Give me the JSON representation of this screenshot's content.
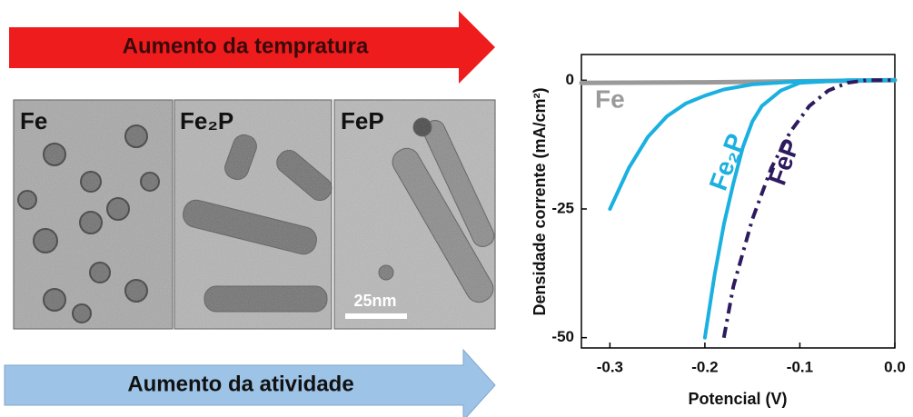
{
  "arrows": {
    "top": "Aumento da tempratura",
    "bottom": "Aumento da atividade"
  },
  "panels": [
    {
      "label": "Fe"
    },
    {
      "label": "Fe₂P"
    },
    {
      "label": "FeP"
    }
  ],
  "scale_bar": "25nm",
  "chart_data": {
    "type": "line",
    "x_label": "Potencial (V)",
    "y_label": "Densidade corrente (mA/cm²)",
    "xlim": [
      -0.33,
      0
    ],
    "ylim": [
      -52,
      5
    ],
    "xticks": [
      -0.3,
      -0.2,
      -0.1,
      {
        "value": 0,
        "label": "0.0"
      }
    ],
    "yticks": [
      0,
      -25,
      -50
    ],
    "series": [
      {
        "name": "Fe",
        "color": "#9a9a9a",
        "x": [
          -0.33,
          -0.2,
          -0.1,
          0
        ],
        "values": [
          -0.5,
          -0.4,
          -0.2,
          0
        ]
      },
      {
        "color": "#1ab0e0",
        "x": [
          -0.3,
          -0.28,
          -0.26,
          -0.24,
          -0.22,
          -0.2,
          -0.18,
          -0.15,
          -0.1,
          0
        ],
        "values": [
          -25,
          -17,
          -11,
          -7,
          -4.5,
          -3,
          -1.8,
          -0.8,
          -0.2,
          0
        ]
      },
      {
        "name": "Fe₂P",
        "color": "#1ab0e0",
        "x": [
          -0.2,
          -0.19,
          -0.18,
          -0.17,
          -0.16,
          -0.15,
          -0.14,
          -0.12,
          -0.1,
          -0.05,
          0
        ],
        "values": [
          -50,
          -38,
          -28,
          -20,
          -13,
          -8,
          -5,
          -2,
          -0.5,
          0,
          0
        ]
      },
      {
        "name": "FeP",
        "color": "#2e1a5e",
        "dash": true,
        "x": [
          -0.18,
          -0.17,
          -0.15,
          -0.13,
          -0.11,
          -0.09,
          -0.07,
          -0.05,
          -0.03,
          0
        ],
        "values": [
          -50,
          -40,
          -27,
          -17,
          -10,
          -5,
          -2,
          -0.5,
          0,
          0
        ]
      }
    ]
  }
}
